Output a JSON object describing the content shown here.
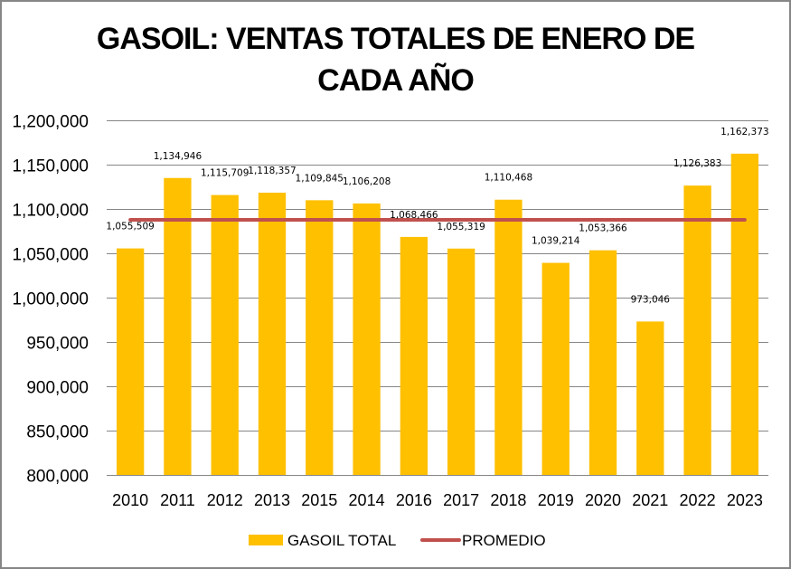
{
  "chart_data": {
    "type": "bar",
    "title": "GASOIL: VENTAS TOTALES DE ENERO DE CADA AÑO",
    "title_lines": [
      "GASOIL: VENTAS TOTALES DE ENERO DE",
      "CADA AÑO"
    ],
    "xlabel": "",
    "ylabel": "",
    "ylim": [
      800000,
      1200000
    ],
    "y_ticks": [
      800000,
      850000,
      900000,
      950000,
      1000000,
      1050000,
      1100000,
      1150000,
      1200000
    ],
    "y_tick_labels": [
      "800,000",
      "850,000",
      "900,000",
      "950,000",
      "1,000,000",
      "1,050,000",
      "1,100,000",
      "1,150,000",
      "1,200,000"
    ],
    "grid": true,
    "categories": [
      "2010",
      "2011",
      "2012",
      "2013",
      "2015",
      "2014",
      "2016",
      "2017",
      "2018",
      "2019",
      "2020",
      "2021",
      "2022",
      "2023"
    ],
    "series": [
      {
        "name": "GASOIL TOTAL",
        "type": "bar",
        "color": "#FFC000",
        "values": [
          1055509,
          1134946,
          1115709,
          1118357,
          1109845,
          1106208,
          1068466,
          1055319,
          1110468,
          1039214,
          1053366,
          973046,
          1126383,
          1162373
        ],
        "data_labels": [
          "1,055,509",
          "1,134,946",
          "1,115,709",
          "1,118,357",
          "1,109,845",
          "1,106,208",
          "1,068,466",
          "1,055,319",
          "1,110,468",
          "1,039,214",
          "1,053,366",
          "973,046",
          "1,126,383",
          "1,162,373"
        ]
      },
      {
        "name": "PROMEDIO",
        "type": "line",
        "color": "#C0504D",
        "values": [
          1087801,
          1087801,
          1087801,
          1087801,
          1087801,
          1087801,
          1087801,
          1087801,
          1087801,
          1087801,
          1087801,
          1087801,
          1087801,
          1087801
        ]
      }
    ],
    "legend": {
      "position": "bottom",
      "entries": [
        "GASOIL TOTAL",
        "PROMEDIO"
      ]
    },
    "colors": {
      "gridline": "#868686",
      "border": "#868686"
    }
  }
}
